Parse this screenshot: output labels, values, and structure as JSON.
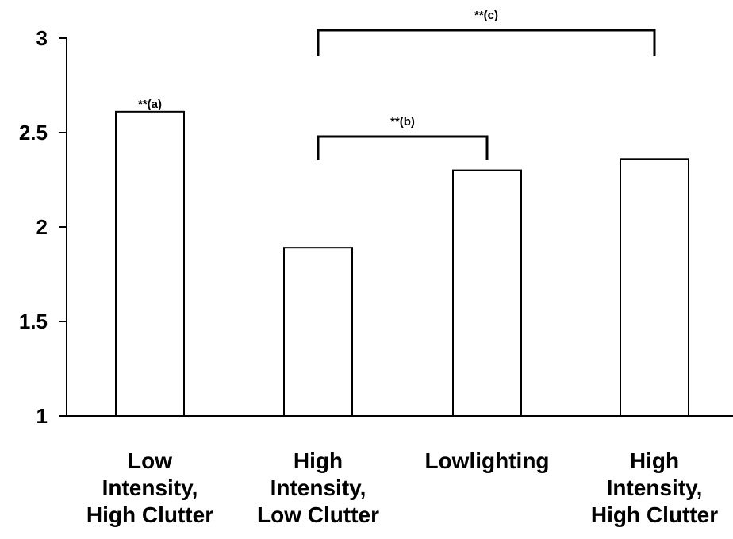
{
  "chart_data": {
    "type": "bar",
    "categories": [
      [
        "Low",
        "Intensity,",
        "High Clutter"
      ],
      [
        "High",
        "Intensity,",
        "Low Clutter"
      ],
      [
        "Lowlighting"
      ],
      [
        "High",
        "Intensity,",
        "High Clutter"
      ]
    ],
    "values": [
      2.61,
      1.89,
      2.3,
      2.36
    ],
    "ylim": [
      1,
      3
    ],
    "yticks": [
      1,
      1.5,
      2,
      2.5,
      3
    ],
    "ytick_labels": [
      "1",
      "1.5",
      "2",
      "2.5",
      "3"
    ],
    "title": "",
    "xlabel": "",
    "ylabel": "",
    "grid": false,
    "bar_fill": "#ffffff",
    "bar_stroke": "#000000",
    "annotations": [
      {
        "text": "**(a)",
        "type": "label",
        "bar": 0
      },
      {
        "text": "**(b)",
        "type": "bracket",
        "from": 1,
        "to": 2
      },
      {
        "text": "**(c)",
        "type": "bracket",
        "from": 1,
        "to": 3
      }
    ]
  }
}
